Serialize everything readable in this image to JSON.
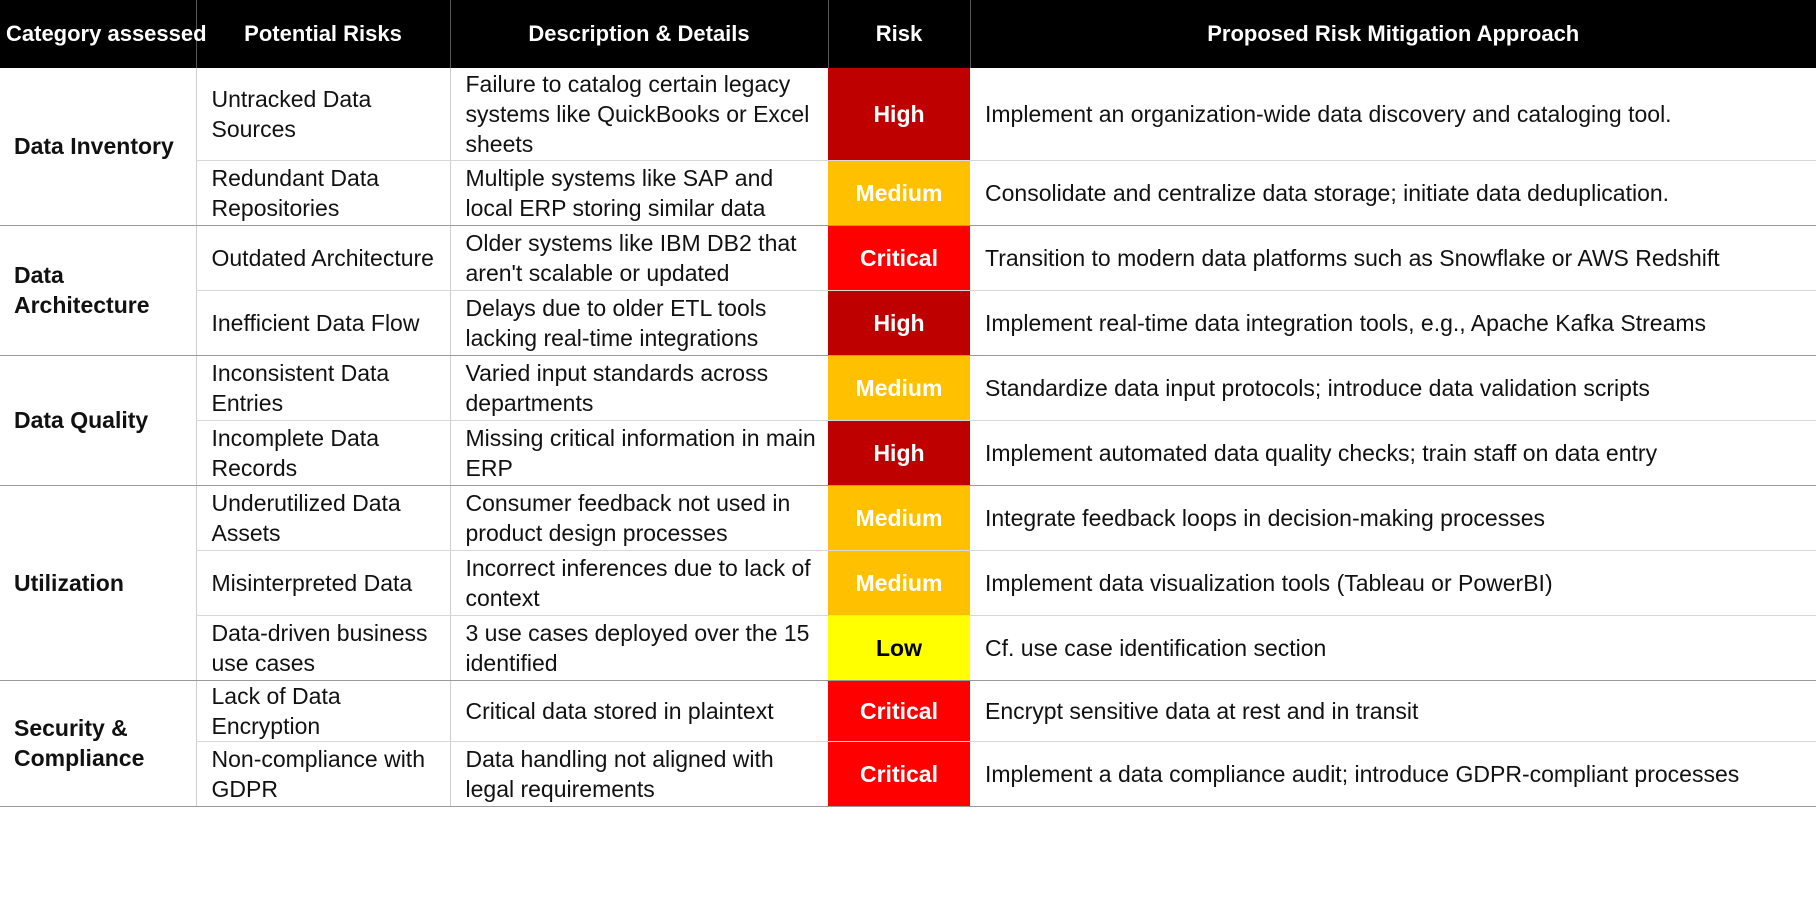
{
  "headers": {
    "category": "Category assessed",
    "risks": "Potential Risks",
    "description": "Description & Details",
    "risk": "Risk",
    "mitigation": "Proposed Risk Mitigation Approach"
  },
  "colors": {
    "High": "#bf0000",
    "Critical": "#ff0000",
    "Medium": "#ffc000",
    "Low": "#ffff00"
  },
  "groups": [
    {
      "category": "Data Inventory",
      "rows": [
        {
          "risk_name": "Untracked Data Sources",
          "description": "Failure to catalog certain legacy systems like QuickBooks or Excel sheets",
          "level": "High",
          "mitigation": "Implement an organization-wide data discovery and cataloging tool."
        },
        {
          "risk_name": "Redundant Data Repositories",
          "description": "Multiple systems like SAP and local ERP storing similar data",
          "level": "Medium",
          "mitigation": "Consolidate and centralize data storage; initiate data deduplication."
        }
      ]
    },
    {
      "category": "Data Architecture",
      "rows": [
        {
          "risk_name": "Outdated Architecture",
          "description": "Older systems like IBM DB2 that aren't scalable or updated",
          "level": "Critical",
          "mitigation": "Transition to modern data platforms such as Snowflake or AWS Redshift"
        },
        {
          "risk_name": "Inefficient Data Flow",
          "description": "Delays due to older ETL tools lacking real-time integrations",
          "level": "High",
          "mitigation": "Implement real-time data integration tools, e.g., Apache Kafka Streams"
        }
      ]
    },
    {
      "category": "Data Quality",
      "rows": [
        {
          "risk_name": "Inconsistent Data Entries",
          "description": "Varied input standards across departments",
          "level": "Medium",
          "mitigation": "Standardize data input protocols; introduce data validation scripts"
        },
        {
          "risk_name": "Incomplete Data Records",
          "description": "Missing critical information in main ERP",
          "level": "High",
          "mitigation": "Implement automated data quality checks; train staff on data entry"
        }
      ]
    },
    {
      "category": "Utilization",
      "rows": [
        {
          "risk_name": "Underutilized Data Assets",
          "description": "Consumer feedback not used in product design processes",
          "level": "Medium",
          "mitigation": "Integrate feedback loops in decision-making processes"
        },
        {
          "risk_name": "Misinterpreted Data",
          "description": "Incorrect inferences due to lack of context",
          "level": "Medium",
          "mitigation": "Implement data visualization tools (Tableau or PowerBI)"
        },
        {
          "risk_name": "Data-driven business use cases",
          "description": "3 use cases deployed over the 15 identified",
          "level": "Low",
          "mitigation": "Cf. use case identification section"
        }
      ]
    },
    {
      "category": "Security & Compliance",
      "rows": [
        {
          "risk_name": "Lack of Data Encryption",
          "description": "Critical data stored in plaintext",
          "level": "Critical",
          "mitigation": "Encrypt sensitive data at rest and in transit"
        },
        {
          "risk_name": "Non-compliance with GDPR",
          "description": "Data handling not aligned with legal requirements",
          "level": "Critical",
          "mitigation": "Implement a data compliance audit; introduce GDPR-compliant processes"
        }
      ]
    }
  ]
}
